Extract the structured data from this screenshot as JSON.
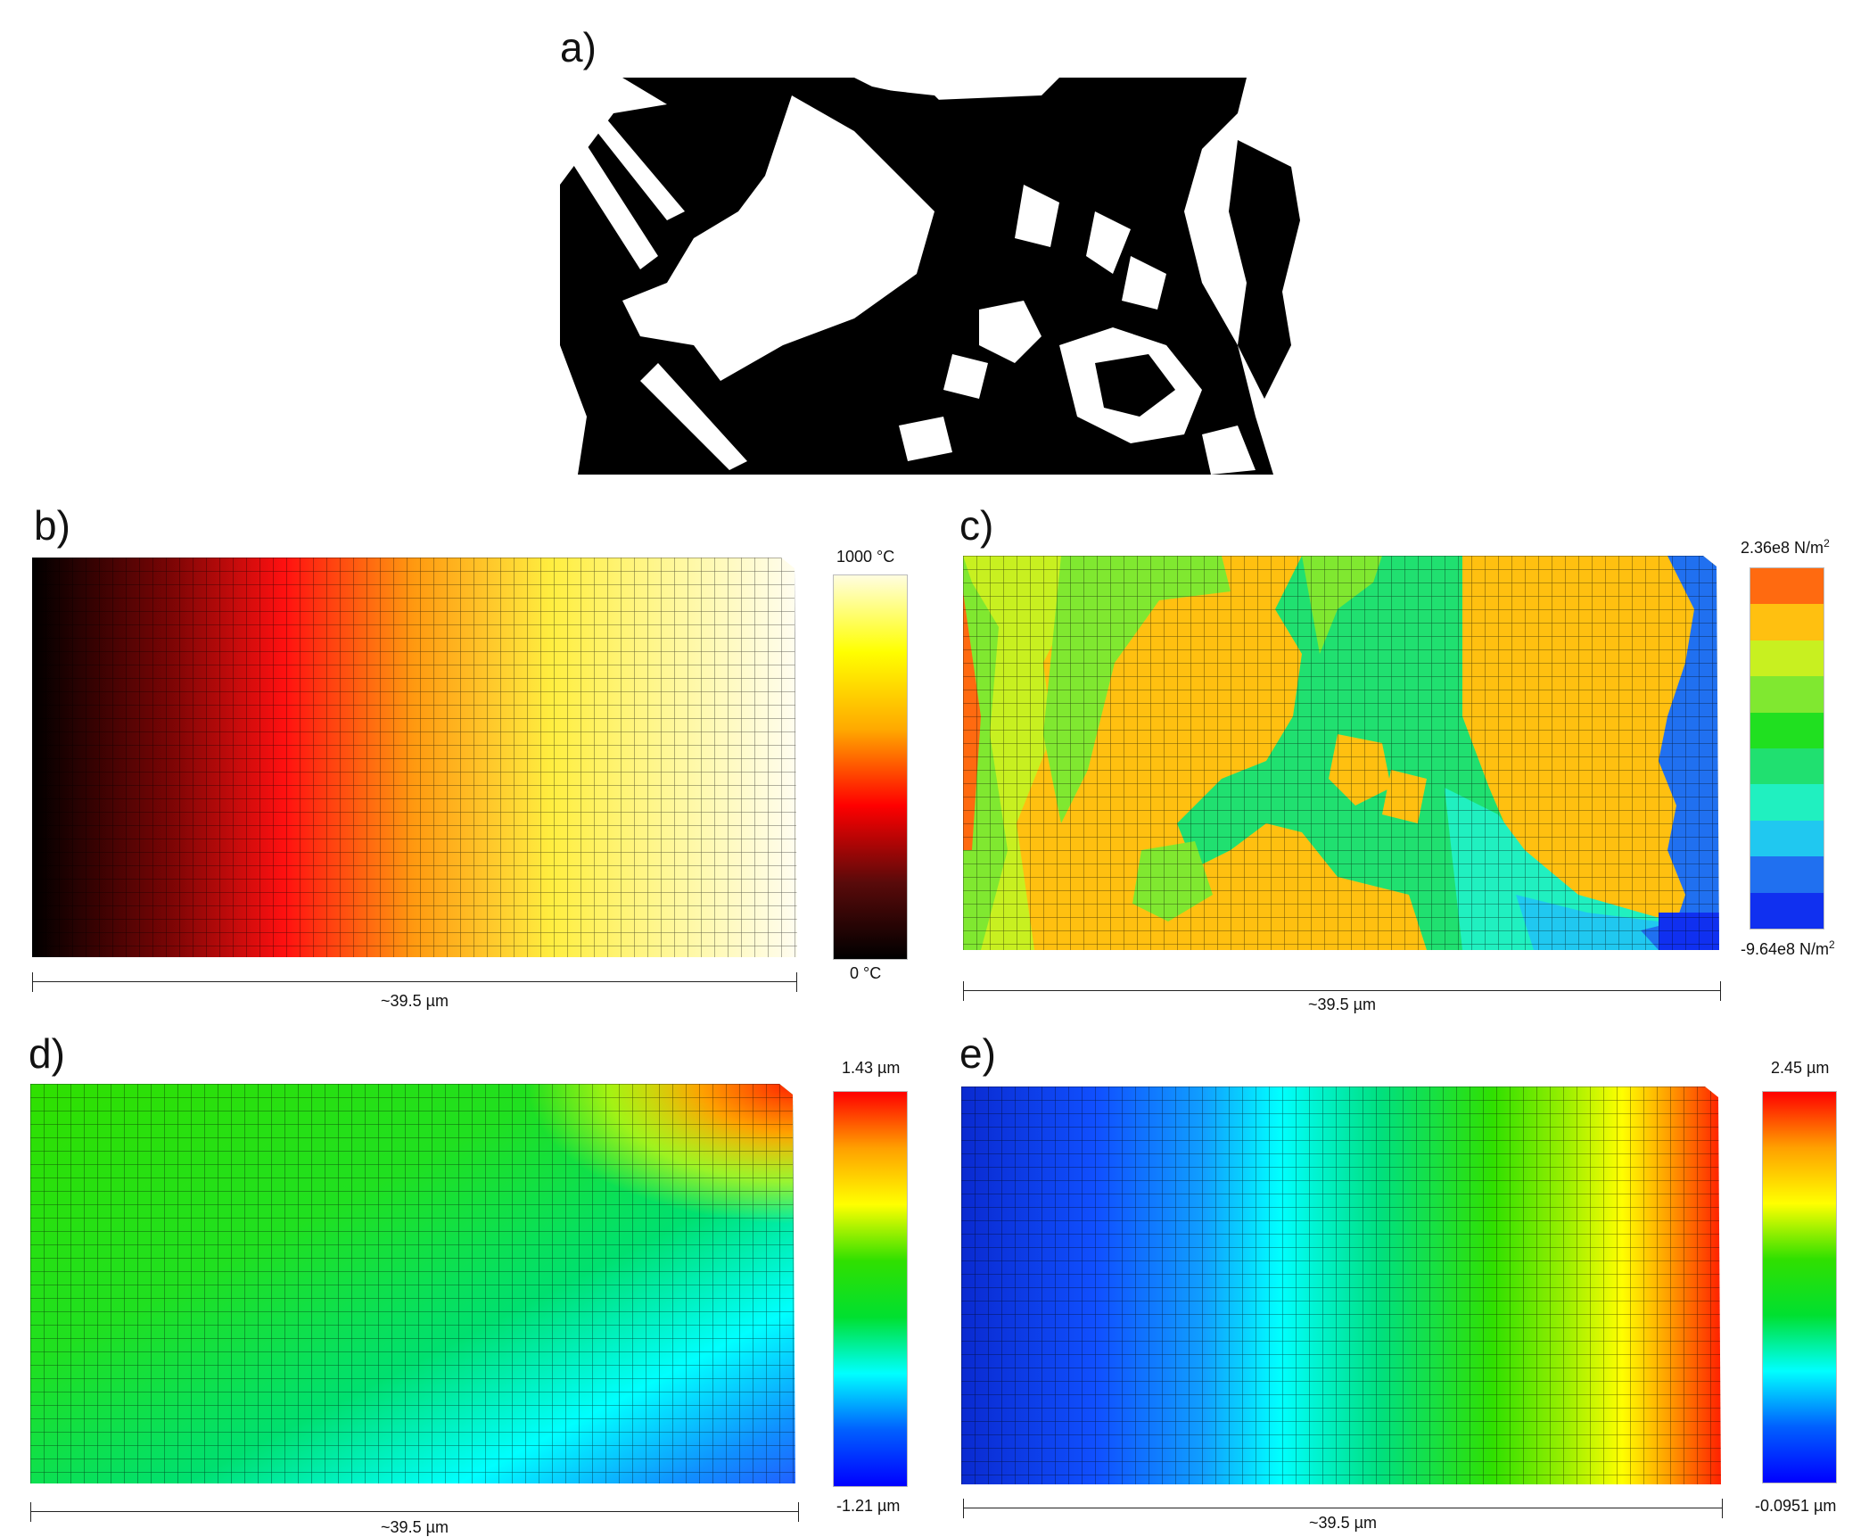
{
  "panels": {
    "a": {
      "label": "a)"
    },
    "b": {
      "label": "b)",
      "colorbar": {
        "max": "1000 °C",
        "min": "0 °C",
        "stops": [
          "#000000",
          "#5a0a0a",
          "#ff0000",
          "#ffaa00",
          "#ffff00",
          "#fffde0"
        ]
      },
      "scale": "~39.5 µm"
    },
    "c": {
      "label": "c)",
      "colorbar": {
        "max_prefix": "2.36e8 N/m",
        "min_prefix": "-9.64e8 N/m",
        "exp": "2",
        "bands": [
          "#ff6a10",
          "#ffc010",
          "#c8f020",
          "#80e830",
          "#20e020",
          "#20e070",
          "#20f0c0",
          "#20c8f0",
          "#2070f0",
          "#1030f0"
        ]
      },
      "scale": "~39.5 µm"
    },
    "d": {
      "label": "d)",
      "colorbar": {
        "max": "1.43 µm",
        "min": "-1.21 µm",
        "stops": [
          "#ff0000",
          "#ffa000",
          "#ffff00",
          "#30e000",
          "#00e030",
          "#00ffff",
          "#0060ff",
          "#0000ff"
        ]
      },
      "scale": "~39.5 µm"
    },
    "e": {
      "label": "e)",
      "colorbar": {
        "max": "2.45 µm",
        "min": "-0.0951 µm",
        "stops": [
          "#ff0000",
          "#ffa000",
          "#ffff00",
          "#30e000",
          "#00e030",
          "#00ffff",
          "#0060ff",
          "#0000ff"
        ]
      },
      "scale": "~39.5 µm"
    }
  }
}
